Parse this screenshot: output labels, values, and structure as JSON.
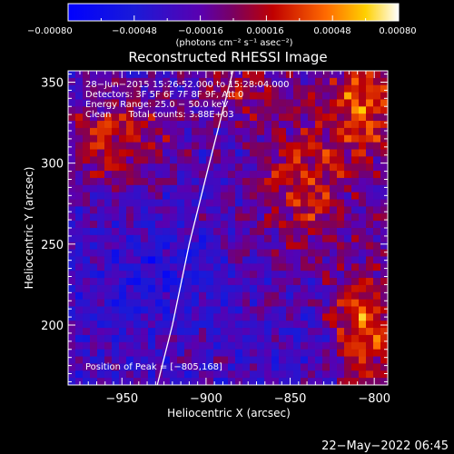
{
  "chart_data": {
    "type": "heatmap",
    "title": "Reconstructed RHESSI Image",
    "xlabel": "Heliocentric X (arcsec)",
    "ylabel": "Heliocentric Y (arcsec)",
    "xlim": [
      -982,
      -792
    ],
    "ylim": [
      163,
      357
    ],
    "x_ticks": [
      -950,
      -900,
      -850,
      -800
    ],
    "y_ticks": [
      200,
      250,
      300,
      350
    ],
    "x_tick_labels": [
      "−950",
      "−900",
      "−850",
      "−800"
    ],
    "y_tick_labels": [
      "200",
      "250",
      "300",
      "350"
    ],
    "colorbar": {
      "min": -0.0008,
      "max": 0.0008,
      "tick_labels": [
        "−0.00080",
        "−0.00048",
        "−0.00016",
        "0.00016",
        "0.00048",
        "0.00080"
      ],
      "unit_label": "(photons cm⁻² s⁻¹ asec⁻²)"
    },
    "annotations": [
      "28−Jun−2015 15:26:52.000 to 15:28:04.000",
      "Detectors: 3F 5F 6F 7F 8F 9F, Att 0",
      "Energy Range: 25.0 − 50.0 keV",
      "Clean      Total counts: 3.88E+03"
    ],
    "peak_label": "Position of Peak = [−805,168]",
    "peak": [
      -805,
      168
    ],
    "limb_curve": [
      [
        -929,
        163
      ],
      [
        -920,
        200
      ],
      [
        -910,
        250
      ],
      [
        -898,
        300
      ],
      [
        -884,
        357
      ]
    ],
    "grid": false
  },
  "footer": {
    "timestamp": "22−May−2022 06:45"
  }
}
